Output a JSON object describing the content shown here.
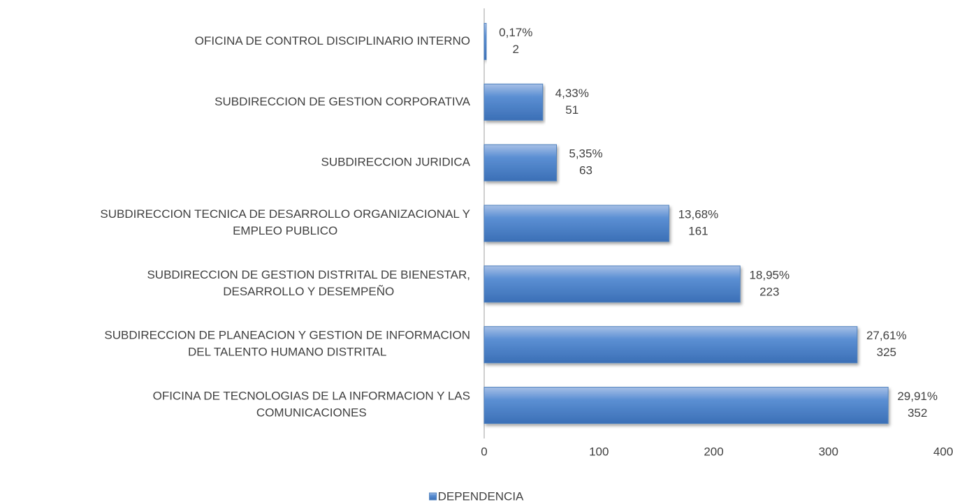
{
  "chart_data": {
    "type": "barh",
    "categories": [
      "OFICINA DE CONTROL DISCIPLINARIO INTERNO",
      "SUBDIRECCION DE GESTION CORPORATIVA",
      "SUBDIRECCION JURIDICA",
      "SUBDIRECCION TECNICA DE DESARROLLO ORGANIZACIONAL Y\nEMPLEO PUBLICO",
      "SUBDIRECCION DE GESTION DISTRITAL DE BIENESTAR,\nDESARROLLO Y DESEMPEÑO",
      "SUBDIRECCION DE PLANEACION Y GESTION DE INFORMACION\nDEL TALENTO HUMANO DISTRITAL",
      "OFICINA DE TECNOLOGIAS DE LA INFORMACION Y LAS\nCOMUNICACIONES"
    ],
    "series": [
      {
        "name": "DEPENDENCIA",
        "color": "#4f81bd",
        "values": [
          2,
          51,
          63,
          161,
          223,
          325,
          352
        ]
      }
    ],
    "percent_labels": [
      "0,17%",
      "4,33%",
      "5,35%",
      "13,68%",
      "18,95%",
      "27,61%",
      "29,91%"
    ],
    "xlim": [
      0,
      400
    ],
    "xticks": [
      0,
      100,
      200,
      300,
      400
    ],
    "legend": "bottom"
  }
}
